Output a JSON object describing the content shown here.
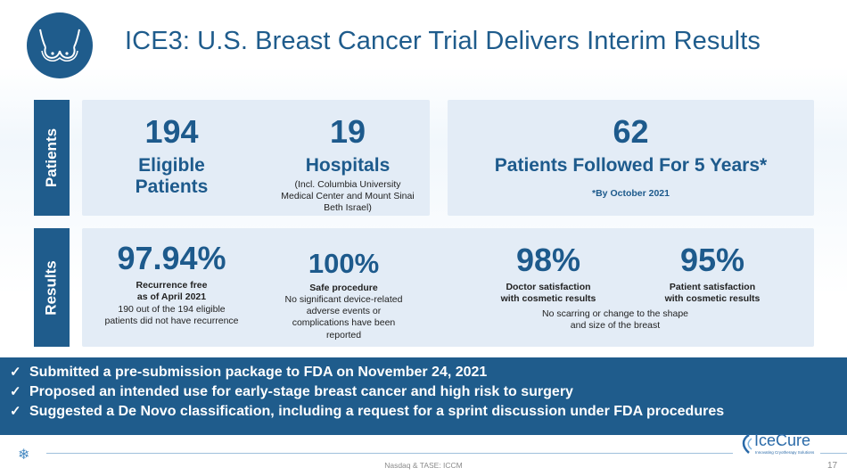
{
  "header": {
    "title": "ICE3: U.S. Breast Cancer Trial Delivers Interim Results",
    "logo_icon": "breast-icon"
  },
  "patients": {
    "tab_label": "Patients",
    "eligible": {
      "value": "194",
      "label_line1": "Eligible",
      "label_line2": "Patients"
    },
    "hospitals": {
      "value": "19",
      "label": "Hospitals",
      "note_line1": "(Incl. Columbia University",
      "note_line2": "Medical Center and Mount Sinai",
      "note_line3": "Beth Israel)"
    },
    "followed": {
      "value": "62",
      "label": "Patients Followed For 5 Years*",
      "footnote": "*By October 2021"
    }
  },
  "results": {
    "tab_label": "Results",
    "recurrence": {
      "value": "97.94%",
      "title_line1": "Recurrence free",
      "title_line2": "as of April 2021",
      "desc_line1": "190 out of the 194 eligible",
      "desc_line2": "patients did not have recurrence"
    },
    "safety": {
      "value": "100%",
      "title": "Safe procedure",
      "desc_line1": "No significant device-related",
      "desc_line2": "adverse events or",
      "desc_line3": "complications have been",
      "desc_line4": "reported"
    },
    "doctor": {
      "value": "98%",
      "title_line1": "Doctor satisfaction",
      "title_line2": "with cosmetic results"
    },
    "patient": {
      "value": "95%",
      "title_line1": "Patient satisfaction",
      "title_line2": "with cosmetic results"
    },
    "cosmetic_note_line1": "No scarring or change to the shape",
    "cosmetic_note_line2": "and size of the breast"
  },
  "banner": {
    "items": [
      "Submitted a pre-submission package to FDA on November 24, 2021",
      "Proposed an intended use for early-stage breast cancer and high risk to surgery",
      "Suggested a De Novo classification, including a request for a sprint discussion under FDA procedures"
    ],
    "check_glyph": "✓"
  },
  "footer": {
    "text": "Nasdaq & TASE: ICCM",
    "page_number": "17",
    "brand_name": "IceCure",
    "brand_tagline": "Innovating Cryotherapy Solutions",
    "snowflake_icon": "snowflake-icon"
  },
  "colors": {
    "primary": "#1f5c8c",
    "card": "#e3ecf6",
    "text_dark": "#222222"
  }
}
